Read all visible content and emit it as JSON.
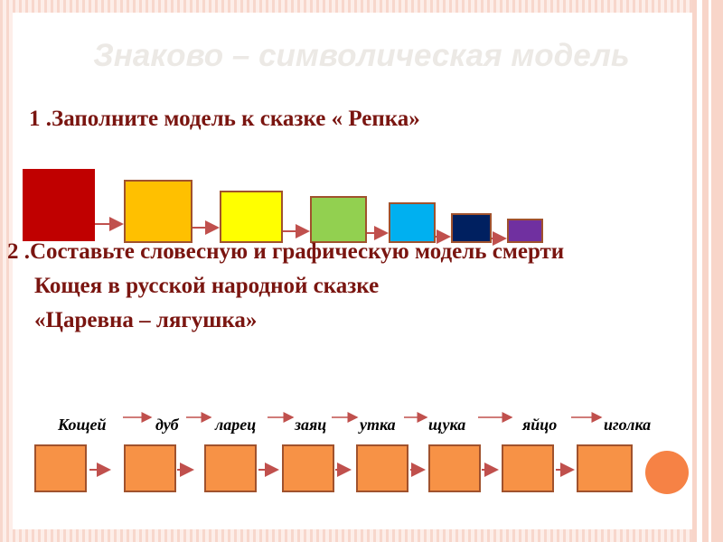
{
  "slide": {
    "title": "Знаково – символическая модель",
    "task1": "1 .Заполните модель к сказке « Репка»",
    "task2_line1": "2 .Составьте словесную и графическую модель смерти",
    "task2_line2": "Кощея в русской народной сказке",
    "task2_line3": "«Царевна –    лягушка»"
  },
  "repka_model": {
    "square_colors": [
      "#c00000",
      "#ffc000",
      "#ffff00",
      "#92d050",
      "#00b0f0",
      "#002060",
      "#7030a0"
    ]
  },
  "koschei_chain": {
    "words": [
      "Кощей",
      "дуб",
      "ларец",
      "заяц",
      "утка",
      "щука",
      "яйцо",
      "иголка"
    ]
  },
  "colors": {
    "task_text": "#7a1510",
    "box_fill": "#f79246",
    "box_border": "#a0522d",
    "arrow": "#c0504d",
    "title": "#ece9e5"
  }
}
